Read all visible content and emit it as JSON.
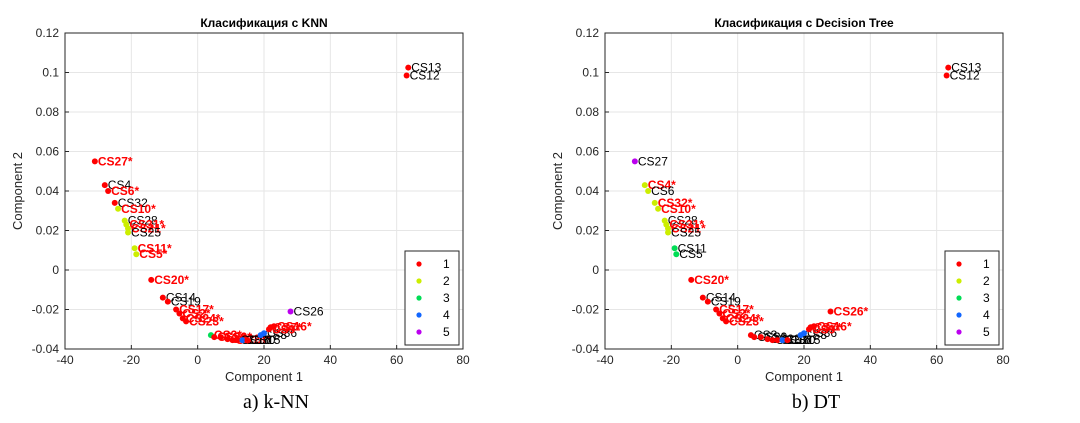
{
  "chart_data": [
    {
      "type": "scatter",
      "title": "Класификация с KNN",
      "xlabel": "Component 1",
      "ylabel": "Component 2",
      "xlim": [
        -40,
        80
      ],
      "ylim": [
        -0.04,
        0.12
      ],
      "xticks": [
        "-40",
        "-20",
        "0",
        "20",
        "40",
        "60",
        "80"
      ],
      "yticks": [
        "-0.04",
        "-0.02",
        "0",
        "0.02",
        "0.04",
        "0.06",
        "0.08",
        "0.1",
        "0.12"
      ],
      "grid": true,
      "legend_position": "bottom-right",
      "legend": [
        {
          "label": "1",
          "color": "#ff0000"
        },
        {
          "label": "2",
          "color": "#ccee00"
        },
        {
          "label": "3",
          "color": "#00dd55"
        },
        {
          "label": "4",
          "color": "#1166ff"
        },
        {
          "label": "5",
          "color": "#bb00ee"
        }
      ],
      "caption": "a) k-NN",
      "points": [
        {
          "x": 63.5,
          "y": 0.1025,
          "cls": 1,
          "label": "CS13",
          "mis": false
        },
        {
          "x": 63.0,
          "y": 0.0985,
          "cls": 1,
          "label": "CS12",
          "mis": false
        },
        {
          "x": -31.0,
          "y": 0.055,
          "cls": 1,
          "label": "CS27*",
          "mis": true
        },
        {
          "x": -28.0,
          "y": 0.043,
          "cls": 1,
          "label": "CS4",
          "mis": false
        },
        {
          "x": -27.0,
          "y": 0.04,
          "cls": 1,
          "label": "CS6*",
          "mis": true
        },
        {
          "x": -25.0,
          "y": 0.034,
          "cls": 1,
          "label": "CS32",
          "mis": false
        },
        {
          "x": -24.0,
          "y": 0.031,
          "cls": 2,
          "label": "CS10*",
          "mis": true
        },
        {
          "x": -22.0,
          "y": 0.025,
          "cls": 2,
          "label": "CS28",
          "mis": false
        },
        {
          "x": -21.5,
          "y": 0.023,
          "cls": 2,
          "label": "CS31*",
          "mis": true
        },
        {
          "x": -21.0,
          "y": 0.021,
          "cls": 2,
          "label": "CS21*",
          "mis": true
        },
        {
          "x": -21.0,
          "y": 0.019,
          "cls": 2,
          "label": "CS25",
          "mis": false
        },
        {
          "x": -19.0,
          "y": 0.011,
          "cls": 2,
          "label": "CS11*",
          "mis": true
        },
        {
          "x": -18.5,
          "y": 0.008,
          "cls": 2,
          "label": "CS5*",
          "mis": true
        },
        {
          "x": -14.0,
          "y": -0.005,
          "cls": 1,
          "label": "CS20*",
          "mis": true
        },
        {
          "x": -10.5,
          "y": -0.014,
          "cls": 1,
          "label": "CS14",
          "mis": false
        },
        {
          "x": -9.0,
          "y": -0.016,
          "cls": 1,
          "label": "CS19",
          "mis": false
        },
        {
          "x": -6.5,
          "y": -0.02,
          "cls": 1,
          "label": "CS17*",
          "mis": true
        },
        {
          "x": -5.5,
          "y": -0.022,
          "cls": 1,
          "label": "CS2*",
          "mis": true
        },
        {
          "x": -4.5,
          "y": -0.0245,
          "cls": 1,
          "label": "CS24*",
          "mis": true
        },
        {
          "x": -3.5,
          "y": -0.026,
          "cls": 1,
          "label": "CS23*",
          "mis": true
        },
        {
          "x": 4.0,
          "y": -0.033,
          "cls": 3,
          "label": "CS3*",
          "mis": true
        },
        {
          "x": 5.0,
          "y": -0.034,
          "cls": 1,
          "label": "CS29*",
          "mis": true
        },
        {
          "x": 7.0,
          "y": -0.034,
          "cls": 1,
          "label": "CS1*",
          "mis": true
        },
        {
          "x": 9.0,
          "y": -0.035,
          "cls": 1,
          "label": "CS22*",
          "mis": true
        },
        {
          "x": 10.5,
          "y": -0.0355,
          "cls": 1,
          "label": "CS18*",
          "mis": true
        },
        {
          "x": 12.0,
          "y": -0.0355,
          "cls": 1,
          "label": "CS16",
          "mis": false
        },
        {
          "x": 13.5,
          "y": -0.0355,
          "cls": 4,
          "label": "CS30",
          "mis": false
        },
        {
          "x": 15.0,
          "y": -0.0355,
          "cls": 1,
          "label": "CS15",
          "mis": false
        },
        {
          "x": 19.0,
          "y": -0.033,
          "cls": 4,
          "label": "CS8",
          "mis": false
        },
        {
          "x": 20.0,
          "y": -0.032,
          "cls": 4,
          "label": "CS36",
          "mis": false
        },
        {
          "x": 21.5,
          "y": -0.03,
          "cls": 1,
          "label": "CS9*",
          "mis": true
        },
        {
          "x": 22.0,
          "y": -0.029,
          "cls": 1,
          "label": "CS7*",
          "mis": true
        },
        {
          "x": 23.0,
          "y": -0.0285,
          "cls": 1,
          "label": "CS16*",
          "mis": true
        },
        {
          "x": 28.0,
          "y": -0.021,
          "cls": 5,
          "label": "CS26",
          "mis": false
        }
      ]
    },
    {
      "type": "scatter",
      "title": "Класификация с Decision Tree",
      "xlabel": "Component 1",
      "ylabel": "Component 2",
      "xlim": [
        -40,
        80
      ],
      "ylim": [
        -0.04,
        0.12
      ],
      "xticks": [
        "-40",
        "-20",
        "0",
        "20",
        "40",
        "60",
        "80"
      ],
      "yticks": [
        "-0.04",
        "-0.02",
        "0",
        "0.02",
        "0.04",
        "0.06",
        "0.08",
        "0.1",
        "0.12"
      ],
      "grid": true,
      "legend_position": "bottom-right",
      "legend": [
        {
          "label": "1",
          "color": "#ff0000"
        },
        {
          "label": "2",
          "color": "#ccee00"
        },
        {
          "label": "3",
          "color": "#00dd55"
        },
        {
          "label": "4",
          "color": "#1166ff"
        },
        {
          "label": "5",
          "color": "#bb00ee"
        }
      ],
      "caption": "b) DT",
      "points": [
        {
          "x": 63.5,
          "y": 0.1025,
          "cls": 1,
          "label": "CS13",
          "mis": false
        },
        {
          "x": 63.0,
          "y": 0.0985,
          "cls": 1,
          "label": "CS12",
          "mis": false
        },
        {
          "x": -31.0,
          "y": 0.055,
          "cls": 5,
          "label": "CS27",
          "mis": false
        },
        {
          "x": -28.0,
          "y": 0.043,
          "cls": 2,
          "label": "CS4*",
          "mis": true
        },
        {
          "x": -27.0,
          "y": 0.04,
          "cls": 2,
          "label": "CS6",
          "mis": false
        },
        {
          "x": -25.0,
          "y": 0.034,
          "cls": 2,
          "label": "CS32*",
          "mis": true
        },
        {
          "x": -24.0,
          "y": 0.031,
          "cls": 2,
          "label": "CS10*",
          "mis": true
        },
        {
          "x": -22.0,
          "y": 0.025,
          "cls": 2,
          "label": "CS28",
          "mis": false
        },
        {
          "x": -21.5,
          "y": 0.023,
          "cls": 2,
          "label": "CS31*",
          "mis": true
        },
        {
          "x": -21.0,
          "y": 0.021,
          "cls": 2,
          "label": "CS21*",
          "mis": true
        },
        {
          "x": -21.0,
          "y": 0.019,
          "cls": 2,
          "label": "CS25",
          "mis": false
        },
        {
          "x": -19.0,
          "y": 0.011,
          "cls": 3,
          "label": "CS11",
          "mis": false
        },
        {
          "x": -18.5,
          "y": 0.008,
          "cls": 3,
          "label": "CS5",
          "mis": false
        },
        {
          "x": -14.0,
          "y": -0.005,
          "cls": 1,
          "label": "CS20*",
          "mis": true
        },
        {
          "x": -10.5,
          "y": -0.014,
          "cls": 1,
          "label": "CS14",
          "mis": false
        },
        {
          "x": -9.0,
          "y": -0.016,
          "cls": 1,
          "label": "CS19",
          "mis": false
        },
        {
          "x": -6.5,
          "y": -0.02,
          "cls": 1,
          "label": "CS17*",
          "mis": true
        },
        {
          "x": -5.5,
          "y": -0.022,
          "cls": 1,
          "label": "CS2*",
          "mis": true
        },
        {
          "x": -4.5,
          "y": -0.0245,
          "cls": 1,
          "label": "CS24*",
          "mis": true
        },
        {
          "x": -3.5,
          "y": -0.026,
          "cls": 1,
          "label": "CS23*",
          "mis": true
        },
        {
          "x": 4.0,
          "y": -0.033,
          "cls": 1,
          "label": "CS3",
          "mis": false
        },
        {
          "x": 5.0,
          "y": -0.034,
          "cls": 1,
          "label": "CS29",
          "mis": false
        },
        {
          "x": 7.0,
          "y": -0.034,
          "cls": 1,
          "label": "CS1",
          "mis": false
        },
        {
          "x": 9.0,
          "y": -0.035,
          "cls": 1,
          "label": "CS22",
          "mis": false
        },
        {
          "x": 10.5,
          "y": -0.0355,
          "cls": 1,
          "label": "CS18",
          "mis": false
        },
        {
          "x": 12.0,
          "y": -0.0355,
          "cls": 1,
          "label": "CS16",
          "mis": false
        },
        {
          "x": 13.5,
          "y": -0.0355,
          "cls": 4,
          "label": "CS30",
          "mis": false
        },
        {
          "x": 15.0,
          "y": -0.0355,
          "cls": 1,
          "label": "CS15",
          "mis": false
        },
        {
          "x": 19.0,
          "y": -0.033,
          "cls": 4,
          "label": "CS8",
          "mis": false
        },
        {
          "x": 20.0,
          "y": -0.032,
          "cls": 4,
          "label": "CS36",
          "mis": false
        },
        {
          "x": 21.5,
          "y": -0.03,
          "cls": 1,
          "label": "CS9*",
          "mis": true
        },
        {
          "x": 22.0,
          "y": -0.029,
          "cls": 1,
          "label": "CS7*",
          "mis": true
        },
        {
          "x": 23.0,
          "y": -0.0285,
          "cls": 1,
          "label": "CS16*",
          "mis": true
        },
        {
          "x": 28.0,
          "y": -0.021,
          "cls": 1,
          "label": "CS26*",
          "mis": true
        }
      ]
    }
  ]
}
